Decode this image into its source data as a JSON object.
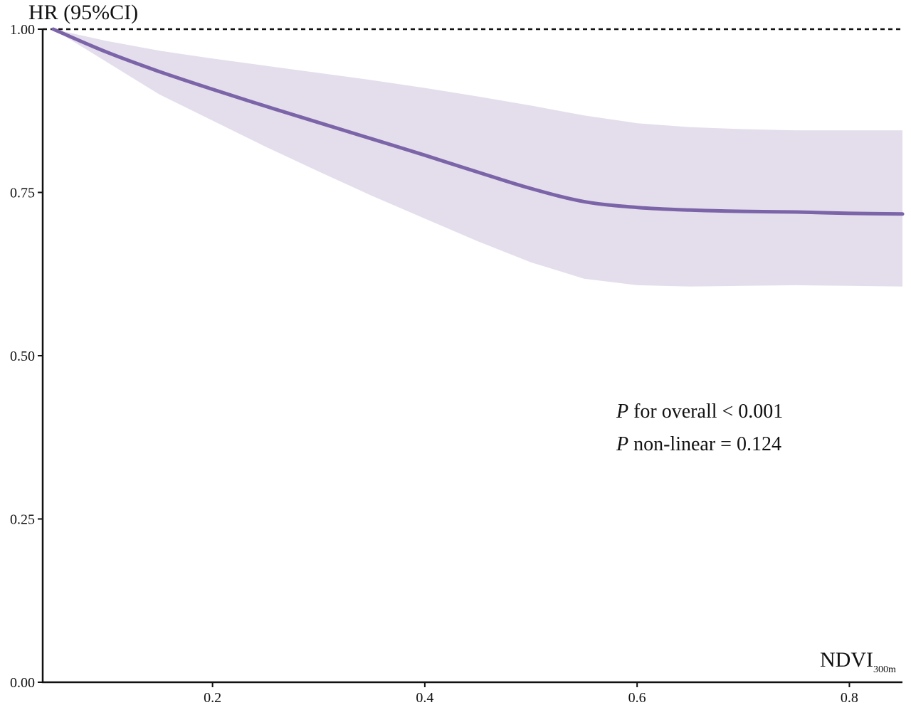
{
  "chart_data": {
    "type": "line",
    "ylabel": "HR (95%CI)",
    "xlabel": "NDVI",
    "xlabel_subscript": "300m",
    "xlim": [
      0.04,
      0.85
    ],
    "ylim": [
      0,
      1
    ],
    "x_ticks": [
      0.2,
      0.4,
      0.6,
      0.8
    ],
    "x_tick_labels": [
      "0.2",
      "0.4",
      "0.6",
      "0.8"
    ],
    "y_ticks": [
      0,
      0.25,
      0.5,
      0.75,
      1
    ],
    "y_tick_labels": [
      "0.00",
      "0.25",
      "0.50",
      "0.75",
      "1.00"
    ],
    "reference_line": {
      "y": 1.0,
      "style": "dashed"
    },
    "grid": false,
    "series": [
      {
        "x": [
          0.05,
          0.1,
          0.15,
          0.2,
          0.25,
          0.3,
          0.35,
          0.4,
          0.45,
          0.5,
          0.55,
          0.6,
          0.65,
          0.7,
          0.75,
          0.8,
          0.85
        ],
        "y": [
          1.0,
          0.965,
          0.935,
          0.908,
          0.882,
          0.857,
          0.832,
          0.807,
          0.781,
          0.756,
          0.736,
          0.727,
          0.723,
          0.721,
          0.72,
          0.718,
          0.717
        ],
        "lower": [
          1.0,
          0.95,
          0.9,
          0.86,
          0.82,
          0.782,
          0.745,
          0.71,
          0.675,
          0.643,
          0.618,
          0.608,
          0.606,
          0.607,
          0.608,
          0.607,
          0.606
        ],
        "upper": [
          1.0,
          0.982,
          0.967,
          0.955,
          0.944,
          0.933,
          0.922,
          0.91,
          0.897,
          0.883,
          0.868,
          0.856,
          0.85,
          0.847,
          0.845,
          0.845,
          0.845
        ]
      }
    ],
    "line_color": "#7b64a8",
    "band_color": "#e4deec",
    "annotations": [
      {
        "italic": "P",
        "text": " for overall < 0.001"
      },
      {
        "italic": "P",
        "text": " non-linear = 0.124"
      }
    ]
  }
}
